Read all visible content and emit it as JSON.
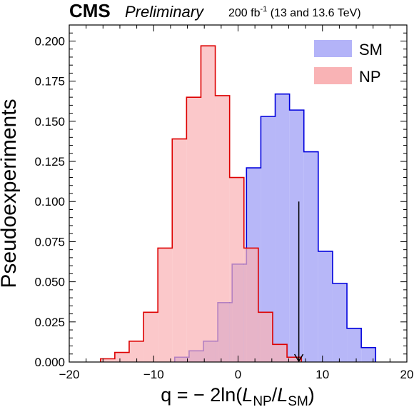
{
  "header": {
    "experiment": "CMS",
    "status": "Preliminary",
    "lumi_value": "200 fb",
    "lumi_exp": "-1",
    "lumi_energy": " (13 and 13.6 TeV)"
  },
  "axes": {
    "ylabel": "Pseudoexperiments",
    "xlabel_prefix": "q = − 2ln(",
    "xlabel_L1": "L",
    "xlabel_sub1": "NP",
    "xlabel_slash": "/",
    "xlabel_L2": "L",
    "xlabel_sub2": "SM",
    "xlabel_suffix": ")"
  },
  "colors": {
    "sm_fill": "#b3b3f8",
    "sm_line": "#0000dd",
    "np_fill": "#f9b3b5",
    "np_line": "#dd0000",
    "arrow": "#000000"
  },
  "chart_data": {
    "type": "histogram",
    "xlim": [
      -20,
      20
    ],
    "ylim": [
      0,
      0.21
    ],
    "xticks": [
      -20,
      -10,
      0,
      10,
      20
    ],
    "yticks": [
      0.0,
      0.025,
      0.05,
      0.075,
      0.1,
      0.125,
      0.15,
      0.175,
      0.2
    ],
    "ytick_labels": [
      "0.000",
      "0.025",
      "0.050",
      "0.075",
      "0.100",
      "0.125",
      "0.150",
      "0.175",
      "0.200"
    ],
    "legend_position": "top-right",
    "series": [
      {
        "name": "SM",
        "bin_edges": [
          -7.5,
          -5.8,
          -4.1,
          -2.4,
          -0.7,
          1.0,
          2.7,
          4.4,
          6.1,
          7.8,
          9.5,
          11.2,
          12.9,
          14.6,
          16.3
        ],
        "values": [
          0.003,
          0.007,
          0.013,
          0.037,
          0.061,
          0.121,
          0.153,
          0.167,
          0.157,
          0.131,
          0.069,
          0.049,
          0.021,
          0.009
        ]
      },
      {
        "name": "NP",
        "bin_edges": [
          -16.3,
          -14.6,
          -12.9,
          -11.2,
          -9.5,
          -7.8,
          -6.1,
          -4.4,
          -2.7,
          -1.0,
          0.7,
          2.4,
          4.1,
          5.8,
          7.5
        ],
        "values": [
          0.002,
          0.006,
          0.013,
          0.031,
          0.071,
          0.139,
          0.165,
          0.197,
          0.166,
          0.115,
          0.071,
          0.031,
          0.011,
          0.003
        ]
      }
    ],
    "annotations": [
      {
        "type": "arrow",
        "x": 7.2,
        "y_from": 0.1,
        "y_to": 0.0
      }
    ]
  }
}
